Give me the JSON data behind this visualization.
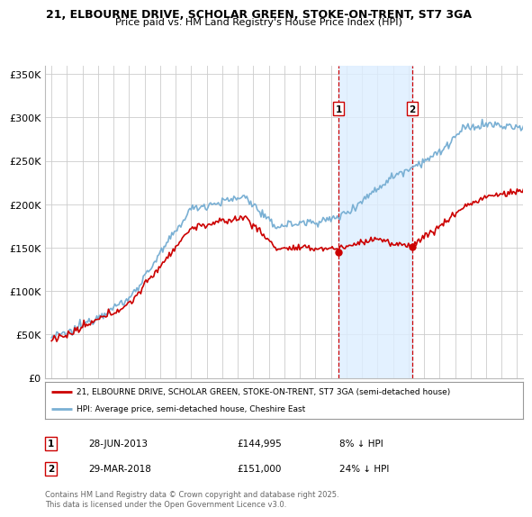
{
  "title1": "21, ELBOURNE DRIVE, SCHOLAR GREEN, STOKE-ON-TRENT, ST7 3GA",
  "title2": "Price paid vs. HM Land Registry's House Price Index (HPI)",
  "legend_line1": "21, ELBOURNE DRIVE, SCHOLAR GREEN, STOKE-ON-TRENT, ST7 3GA (semi-detached house)",
  "legend_line2": "HPI: Average price, semi-detached house, Cheshire East",
  "annotation1_label": "1",
  "annotation1_date": "28-JUN-2013",
  "annotation1_price": "£144,995",
  "annotation1_hpi": "8% ↓ HPI",
  "annotation2_label": "2",
  "annotation2_date": "29-MAR-2018",
  "annotation2_price": "£151,000",
  "annotation2_hpi": "24% ↓ HPI",
  "footer": "Contains HM Land Registry data © Crown copyright and database right 2025.\nThis data is licensed under the Open Government Licence v3.0.",
  "purchase1_year": 2013.5,
  "purchase1_value": 144995,
  "purchase2_year": 2018.25,
  "purchase2_value": 151000,
  "hpi_color": "#7ab0d4",
  "price_color": "#cc0000",
  "shading_color": "#ddeeff",
  "annotation_color": "#cc0000",
  "background_color": "#ffffff",
  "grid_color": "#cccccc",
  "ylim": [
    0,
    360000
  ],
  "yticks": [
    0,
    50000,
    100000,
    150000,
    200000,
    250000,
    300000,
    350000
  ],
  "xlim_start": 1994.6,
  "xlim_end": 2025.4
}
